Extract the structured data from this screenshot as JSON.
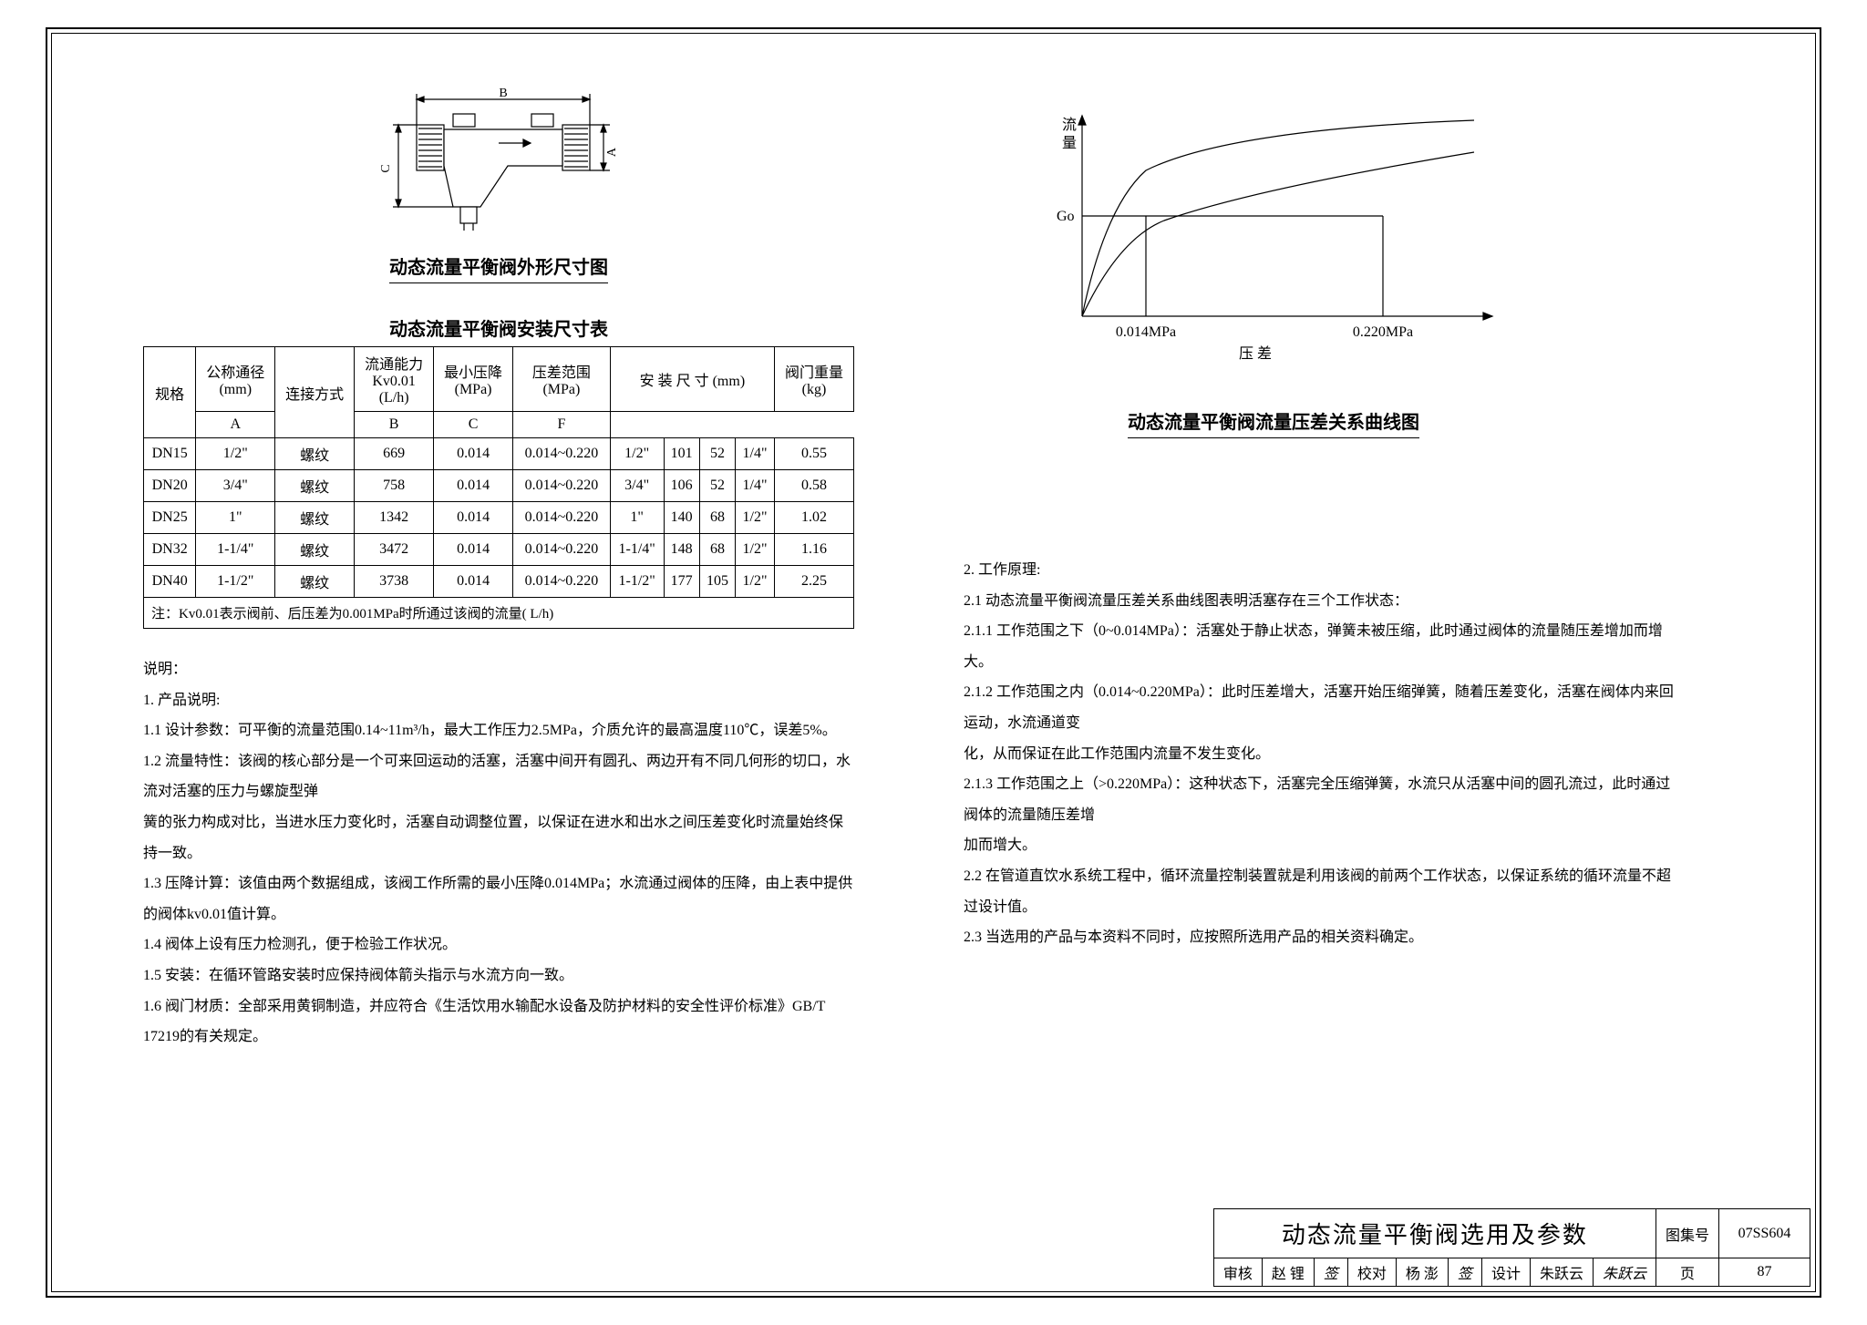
{
  "diagram": {
    "dim_B": "B",
    "dim_C": "C",
    "dim_A": "A",
    "caption": "动态流量平衡阀外形尺寸图"
  },
  "table": {
    "title": "动态流量平衡阀安装尺寸表",
    "headers": {
      "spec": "规格",
      "dn": "公称通径",
      "dn_unit": "(mm)",
      "conn": "连接方式",
      "kv_label": "流通能力",
      "kv_sub": "Kv0.01",
      "kv_unit": "(L/h)",
      "minp": "最小压降",
      "minp_unit": "(MPa)",
      "prange": "压差范围",
      "prange_unit": "(MPa)",
      "dims": "安 装 尺 寸 (mm)",
      "A": "A",
      "B": "B",
      "C": "C",
      "F": "F",
      "weight": "阀门重量",
      "weight_unit": "(kg)"
    },
    "rows": [
      {
        "spec": "DN15",
        "dn": "1/2\"",
        "conn": "螺纹",
        "kv": "669",
        "minp": "0.014",
        "prange": "0.014~0.220",
        "A": "1/2\"",
        "B": "101",
        "C": "52",
        "F": "1/4\"",
        "wt": "0.55"
      },
      {
        "spec": "DN20",
        "dn": "3/4\"",
        "conn": "螺纹",
        "kv": "758",
        "minp": "0.014",
        "prange": "0.014~0.220",
        "A": "3/4\"",
        "B": "106",
        "C": "52",
        "F": "1/4\"",
        "wt": "0.58"
      },
      {
        "spec": "DN25",
        "dn": "1\"",
        "conn": "螺纹",
        "kv": "1342",
        "minp": "0.014",
        "prange": "0.014~0.220",
        "A": "1\"",
        "B": "140",
        "C": "68",
        "F": "1/2\"",
        "wt": "1.02"
      },
      {
        "spec": "DN32",
        "dn": "1-1/4\"",
        "conn": "螺纹",
        "kv": "3472",
        "minp": "0.014",
        "prange": "0.014~0.220",
        "A": "1-1/4\"",
        "B": "148",
        "C": "68",
        "F": "1/2\"",
        "wt": "1.16"
      },
      {
        "spec": "DN40",
        "dn": "1-1/2\"",
        "conn": "螺纹",
        "kv": "3738",
        "minp": "0.014",
        "prange": "0.014~0.220",
        "A": "1-1/2\"",
        "B": "177",
        "C": "105",
        "F": "1/2\"",
        "wt": "2.25"
      }
    ],
    "note": "注：Kv0.01表示阀前、后压差为0.001MPa时所通过该阀的流量( L/h)"
  },
  "chart": {
    "y_label_top1": "流",
    "y_label_top2": "量",
    "y_tick_go": "Go",
    "x_tick1": "0.014MPa",
    "x_tick2": "0.220MPa",
    "x_label": "压  差",
    "caption": "动态流量平衡阀流量压差关系曲线图",
    "type": "line",
    "curve_color": "#000000",
    "axis_color": "#000000",
    "background_color": "#ffffff"
  },
  "notes_left": {
    "heading": "说明：",
    "s1": "1. 产品说明:",
    "s11": "1.1 设计参数：可平衡的流量范围0.14~11m³/h，最大工作压力2.5MPa，介质允许的最高温度110℃，误差5%。",
    "s12": "1.2 流量特性：该阀的核心部分是一个可来回运动的活塞，活塞中间开有圆孔、两边开有不同几何形的切口，水流对活塞的压力与螺旋型弹",
    "s12b": "簧的张力构成对比，当进水压力变化时，活塞自动调整位置，以保证在进水和出水之间压差变化时流量始终保持一致。",
    "s13": "1.3 压降计算：该值由两个数据组成，该阀工作所需的最小压降0.014MPa；水流通过阀体的压降，由上表中提供的阀体kv0.01值计算。",
    "s14": "1.4 阀体上设有压力检测孔，便于检验工作状况。",
    "s15": "1.5 安装：在循环管路安装时应保持阀体箭头指示与水流方向一致。",
    "s16": "1.6 阀门材质：全部采用黄铜制造，并应符合《生活饮用水输配水设备及防护材料的安全性评价标准》GB/T 17219的有关规定。"
  },
  "notes_right": {
    "s2": "2. 工作原理:",
    "s21": "2.1 动态流量平衡阀流量压差关系曲线图表明活塞存在三个工作状态：",
    "s211": "2.1.1 工作范围之下（0~0.014MPa）：活塞处于静止状态，弹簧未被压缩，此时通过阀体的流量随压差增加而增大。",
    "s212": "2.1.2 工作范围之内（0.014~0.220MPa）：此时压差增大，活塞开始压缩弹簧，随着压差变化，活塞在阀体内来回运动，水流通道变",
    "s212b": "化，从而保证在此工作范围内流量不发生变化。",
    "s213": "2.1.3 工作范围之上（>0.220MPa）：这种状态下，活塞完全压缩弹簧，水流只从活塞中间的圆孔流过，此时通过阀体的流量随压差增",
    "s213b": "加而增大。",
    "s22": "2.2 在管道直饮水系统工程中，循环流量控制装置就是利用该阀的前两个工作状态，以保证系统的循环流量不超过设计值。",
    "s23": "2.3 当选用的产品与本资料不同时，应按照所选用产品的相关资料确定。"
  },
  "titleblock": {
    "main": "动态流量平衡阀选用及参数",
    "set_label": "图集号",
    "set_no": "07SS604",
    "审核": "审核",
    "审核name": "赵 锂",
    "审核sig": "签",
    "校对": "校对",
    "校对name": "杨 澎",
    "校对sig": "签",
    "设计": "设计",
    "设计name": "朱跃云",
    "设计sig": "朱跃云",
    "页": "页",
    "页no": "87"
  }
}
